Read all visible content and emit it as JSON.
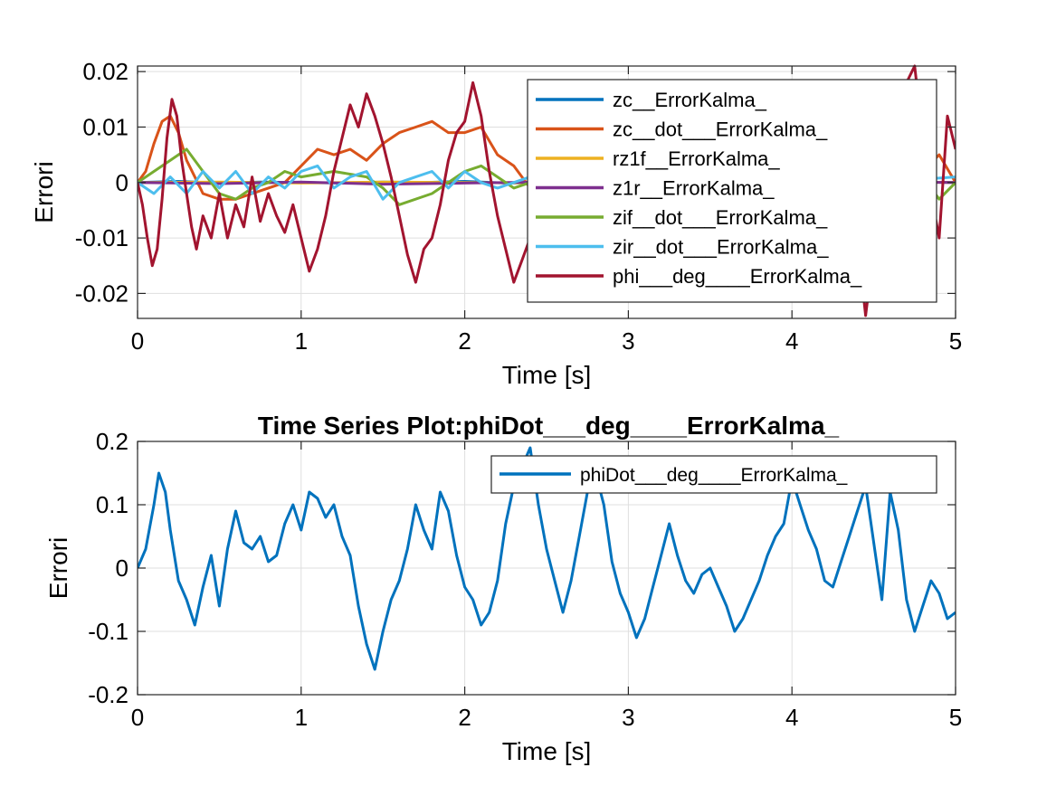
{
  "colors": {
    "background": "#ffffff",
    "axes": "#262626",
    "grid": "#dfdfdf",
    "legend_border": "#262626"
  },
  "chart_data": [
    {
      "type": "line",
      "title": "",
      "xlabel": "Time [s]",
      "ylabel": "Errori",
      "xlim": [
        0,
        5
      ],
      "ylim": [
        -0.0245,
        0.021
      ],
      "xticks": [
        0,
        1,
        2,
        3,
        4,
        5
      ],
      "xtick_labels": [
        "0",
        "1",
        "2",
        "3",
        "4",
        "5"
      ],
      "yticks": [
        -0.02,
        -0.01,
        0,
        0.01,
        0.02
      ],
      "ytick_labels": [
        "-0.02",
        "-0.01",
        "0",
        "0.01",
        "0.02"
      ],
      "grid": true,
      "legend_position": "top-right",
      "series": [
        {
          "name": "zc__ErrorKalma_",
          "color": "#0072bd",
          "x": [
            0,
            0.25,
            0.5,
            0.75,
            1,
            1.25,
            1.5,
            1.75,
            2,
            2.25,
            2.5,
            2.75,
            3,
            3.25,
            3.5,
            3.75,
            4,
            4.25,
            4.5,
            4.75,
            5
          ],
          "values": [
            0,
            0.0002,
            -0.0001,
            0.0001,
            0,
            -0.0001,
            0.0001,
            0,
            0.0002,
            -0.0001,
            0,
            0.0001,
            -0.0001,
            0,
            0.0001,
            0,
            -0.0001,
            0.0001,
            0,
            0.0001,
            0
          ]
        },
        {
          "name": "zc__dot___ErrorKalma_",
          "color": "#d95319",
          "x": [
            0,
            0.05,
            0.1,
            0.15,
            0.2,
            0.25,
            0.3,
            0.35,
            0.4,
            0.5,
            0.6,
            0.7,
            0.8,
            0.9,
            1.0,
            1.1,
            1.2,
            1.3,
            1.4,
            1.5,
            1.6,
            1.7,
            1.8,
            1.9,
            2.0,
            2.1,
            2.2,
            2.3,
            2.4,
            2.5,
            2.6,
            2.7,
            2.8,
            2.9,
            3.0,
            3.2,
            3.4,
            3.6,
            3.8,
            4.0,
            4.2,
            4.4,
            4.6,
            4.8,
            4.9,
            5.0
          ],
          "values": [
            0,
            0.002,
            0.007,
            0.011,
            0.012,
            0.009,
            0.004,
            0.001,
            -0.002,
            -0.003,
            -0.003,
            -0.002,
            -0.001,
            0,
            0.003,
            0.006,
            0.005,
            0.006,
            0.004,
            0.007,
            0.009,
            0.01,
            0.011,
            0.009,
            0.009,
            0.01,
            0.005,
            0.003,
            -0.001,
            -0.002,
            -0.002,
            -0.003,
            -0.001,
            0,
            0,
            -0.001,
            0.001,
            0,
            -0.001,
            0,
            0.001,
            0,
            -0.001,
            0.002,
            0.005,
            0
          ]
        },
        {
          "name": "rz1f__ErrorKalma_",
          "color": "#edb120",
          "x": [
            0,
            0.5,
            1,
            1.5,
            2,
            2.5,
            3,
            3.5,
            4,
            4.5,
            5
          ],
          "values": [
            0,
            0.0001,
            -0.0001,
            0.0001,
            0,
            -0.0001,
            0.0001,
            0,
            -0.0001,
            0.0001,
            0
          ]
        },
        {
          "name": "z1r__ErrorKalma_",
          "color": "#7e2f8e",
          "x": [
            0,
            0.5,
            1,
            1.5,
            2,
            2.5,
            3,
            3.5,
            4,
            4.5,
            5
          ],
          "values": [
            0,
            -0.0002,
            0.0001,
            -0.0003,
            -0.0001,
            0.0001,
            -0.0002,
            0,
            -0.0001,
            0.0001,
            0
          ]
        },
        {
          "name": "zif__dot___ErrorKalma_",
          "color": "#77ac30",
          "x": [
            0,
            0.1,
            0.2,
            0.3,
            0.4,
            0.5,
            0.6,
            0.7,
            0.8,
            0.9,
            1.0,
            1.2,
            1.4,
            1.5,
            1.6,
            1.8,
            1.9,
            2.0,
            2.1,
            2.2,
            2.3,
            2.4,
            2.5,
            2.7,
            3.0,
            3.5,
            4.0,
            4.5,
            4.8,
            4.9,
            5.0
          ],
          "values": [
            0,
            0.002,
            0.004,
            0.006,
            0.002,
            -0.002,
            -0.003,
            -0.001,
            0,
            0.002,
            0.001,
            0.002,
            0.001,
            -0.001,
            -0.004,
            -0.002,
            0,
            0.002,
            0.003,
            0.001,
            -0.001,
            0,
            0.001,
            0,
            0.001,
            0,
            -0.001,
            0.001,
            0.001,
            -0.003,
            0
          ]
        },
        {
          "name": "zir__dot___ErrorKalma_",
          "color": "#4dbeee",
          "x": [
            0,
            0.1,
            0.2,
            0.3,
            0.4,
            0.5,
            0.6,
            0.7,
            0.8,
            0.9,
            1.0,
            1.1,
            1.2,
            1.3,
            1.4,
            1.5,
            1.6,
            1.7,
            1.8,
            1.9,
            2.0,
            2.1,
            2.2,
            2.4,
            2.6,
            3.0,
            3.5,
            4.0,
            4.5,
            5.0
          ],
          "values": [
            0,
            -0.002,
            0.001,
            -0.002,
            0.002,
            -0.001,
            0.002,
            -0.002,
            0.001,
            -0.001,
            0.002,
            0.003,
            -0.001,
            0.001,
            0.002,
            -0.003,
            0,
            0.001,
            0.002,
            -0.001,
            0.002,
            0,
            -0.001,
            0.001,
            0,
            0.001,
            -0.001,
            0.001,
            0,
            0.001
          ]
        },
        {
          "name": "phi___deg____ErrorKalma_",
          "color": "#a2142f",
          "x": [
            0,
            0.03,
            0.06,
            0.09,
            0.12,
            0.15,
            0.18,
            0.21,
            0.24,
            0.27,
            0.3,
            0.33,
            0.36,
            0.4,
            0.45,
            0.5,
            0.55,
            0.6,
            0.65,
            0.7,
            0.75,
            0.8,
            0.85,
            0.9,
            0.95,
            1.0,
            1.05,
            1.1,
            1.15,
            1.2,
            1.25,
            1.3,
            1.35,
            1.4,
            1.45,
            1.5,
            1.55,
            1.6,
            1.65,
            1.7,
            1.75,
            1.8,
            1.85,
            1.9,
            1.95,
            2.0,
            2.05,
            2.1,
            2.15,
            2.2,
            2.25,
            2.3,
            2.35,
            2.4,
            2.45,
            2.5,
            4.3,
            4.35,
            4.4,
            4.45,
            4.5,
            4.55,
            4.6,
            4.65,
            4.7,
            4.75,
            4.8,
            4.85,
            4.9,
            4.95,
            5.0
          ],
          "values": [
            0,
            -0.004,
            -0.01,
            -0.015,
            -0.012,
            -0.003,
            0.008,
            0.015,
            0.012,
            0.004,
            -0.002,
            -0.008,
            -0.012,
            -0.006,
            -0.01,
            -0.002,
            -0.01,
            -0.004,
            -0.008,
            0.001,
            -0.007,
            -0.002,
            -0.006,
            -0.009,
            -0.004,
            -0.01,
            -0.016,
            -0.012,
            -0.006,
            0.002,
            0.008,
            0.014,
            0.01,
            0.016,
            0.012,
            0.007,
            0.001,
            -0.006,
            -0.013,
            -0.018,
            -0.012,
            -0.01,
            -0.004,
            0.004,
            0.009,
            0.011,
            0.018,
            0.012,
            0.002,
            -0.006,
            -0.012,
            -0.018,
            -0.014,
            -0.01,
            -0.004,
            -0.006,
            0,
            -0.004,
            -0.01,
            -0.024,
            -0.012,
            -0.006,
            0.004,
            0.012,
            0.018,
            0.021,
            0.008,
            -0.002,
            -0.01,
            0.012,
            0.006
          ]
        }
      ]
    },
    {
      "type": "line",
      "title": "Time Series Plot:phiDot___deg____ErrorKalma_",
      "xlabel": "Time [s]",
      "ylabel": "Errori",
      "xlim": [
        0,
        5
      ],
      "ylim": [
        -0.2,
        0.2
      ],
      "xticks": [
        0,
        1,
        2,
        3,
        4,
        5
      ],
      "xtick_labels": [
        "0",
        "1",
        "2",
        "3",
        "4",
        "5"
      ],
      "yticks": [
        -0.2,
        -0.1,
        0,
        0.1,
        0.2
      ],
      "ytick_labels": [
        "-0.2",
        "-0.1",
        "0",
        "0.1",
        "0.2"
      ],
      "grid": true,
      "legend_position": "top-right",
      "series": [
        {
          "name": "phiDot___deg____ErrorKalma_",
          "color": "#0072bd",
          "x": [
            0,
            0.05,
            0.1,
            0.13,
            0.17,
            0.2,
            0.25,
            0.3,
            0.35,
            0.4,
            0.45,
            0.5,
            0.55,
            0.6,
            0.65,
            0.7,
            0.75,
            0.8,
            0.85,
            0.9,
            0.95,
            1.0,
            1.05,
            1.1,
            1.15,
            1.2,
            1.25,
            1.3,
            1.35,
            1.4,
            1.45,
            1.5,
            1.55,
            1.6,
            1.65,
            1.7,
            1.75,
            1.8,
            1.85,
            1.9,
            1.95,
            2.0,
            2.05,
            2.1,
            2.15,
            2.2,
            2.25,
            2.3,
            2.35,
            2.4,
            2.45,
            2.5,
            2.55,
            2.6,
            2.65,
            2.7,
            2.75,
            2.8,
            2.85,
            2.9,
            2.95,
            3.0,
            3.05,
            3.1,
            3.15,
            3.2,
            3.25,
            3.3,
            3.35,
            3.4,
            3.45,
            3.5,
            3.55,
            3.6,
            3.65,
            3.7,
            3.75,
            3.8,
            3.85,
            3.9,
            3.95,
            4.0,
            4.05,
            4.1,
            4.15,
            4.2,
            4.25,
            4.3,
            4.35,
            4.4,
            4.45,
            4.5,
            4.55,
            4.6,
            4.65,
            4.7,
            4.75,
            4.8,
            4.85,
            4.9,
            4.95,
            5.0
          ],
          "values": [
            0,
            0.03,
            0.1,
            0.15,
            0.12,
            0.06,
            -0.02,
            -0.05,
            -0.09,
            -0.03,
            0.02,
            -0.06,
            0.03,
            0.09,
            0.04,
            0.03,
            0.05,
            0.01,
            0.02,
            0.07,
            0.1,
            0.06,
            0.12,
            0.11,
            0.08,
            0.1,
            0.05,
            0.02,
            -0.06,
            -0.12,
            -0.16,
            -0.1,
            -0.05,
            -0.02,
            0.03,
            0.1,
            0.06,
            0.03,
            0.12,
            0.09,
            0.02,
            -0.03,
            -0.05,
            -0.09,
            -0.07,
            -0.02,
            0.07,
            0.13,
            0.16,
            0.19,
            0.1,
            0.03,
            -0.02,
            -0.07,
            -0.02,
            0.05,
            0.12,
            0.15,
            0.1,
            0.01,
            -0.04,
            -0.07,
            -0.11,
            -0.08,
            -0.03,
            0.02,
            0.07,
            0.02,
            -0.02,
            -0.04,
            -0.01,
            0,
            -0.03,
            -0.06,
            -0.1,
            -0.08,
            -0.05,
            -0.02,
            0.02,
            0.05,
            0.07,
            0.14,
            0.1,
            0.06,
            0.03,
            -0.02,
            -0.03,
            0.01,
            0.05,
            0.09,
            0.13,
            0.04,
            -0.05,
            0.12,
            0.06,
            -0.05,
            -0.1,
            -0.06,
            -0.02,
            -0.04,
            -0.08,
            -0.07
          ]
        }
      ]
    }
  ]
}
